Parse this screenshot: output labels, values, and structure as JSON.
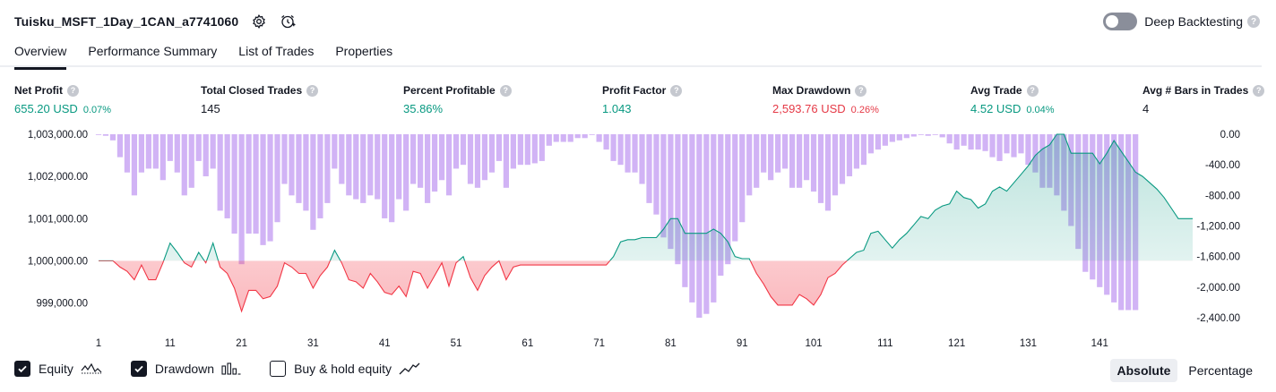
{
  "header": {
    "title": "Tuisku_MSFT_1Day_1CAN_a7741060",
    "deep_backtesting": "Deep Backtesting",
    "help": "?"
  },
  "tabs": [
    {
      "label": "Overview",
      "active": true
    },
    {
      "label": "Performance Summary",
      "active": false
    },
    {
      "label": "List of Trades",
      "active": false
    },
    {
      "label": "Properties",
      "active": false
    }
  ],
  "metrics": [
    {
      "label": "Net Profit",
      "value": "655.20 USD",
      "pct": "0.07%",
      "tone": "pos"
    },
    {
      "label": "Total Closed Trades",
      "value": "145",
      "pct": "",
      "tone": "neu"
    },
    {
      "label": "Percent Profitable",
      "value": "35.86%",
      "pct": "",
      "tone": "pos"
    },
    {
      "label": "Profit Factor",
      "value": "1.043",
      "pct": "",
      "tone": "pos"
    },
    {
      "label": "Max Drawdown",
      "value": "2,593.76 USD",
      "pct": "0.26%",
      "tone": "neg"
    },
    {
      "label": "Avg Trade",
      "value": "4.52 USD",
      "pct": "0.04%",
      "tone": "pos"
    },
    {
      "label": "Avg # Bars in Trades",
      "value": "4",
      "pct": "",
      "tone": "neu"
    }
  ],
  "legend": {
    "equity": "Equity",
    "drawdown": "Drawdown",
    "buy_hold": "Buy & hold equity"
  },
  "modes": {
    "absolute": "Absolute",
    "percentage": "Percentage"
  },
  "colors": {
    "up": "#089981",
    "down": "#f23645",
    "drawdown_bar": "#d1b3f5"
  },
  "chart_data": {
    "type": "line",
    "baseline": 1000000,
    "y_left_ticks": [
      "1,003,000.00",
      "1,002,000.00",
      "1,001,000.00",
      "1,000,000.00",
      "999,000.00"
    ],
    "y_left_values": [
      1003000,
      1002000,
      1001000,
      1000000,
      999000
    ],
    "y_right_ticks": [
      "0.00",
      "-400.00",
      "-800.00",
      "-1,200.00",
      "-1,600.00",
      "-2,000.00",
      "-2,400.00"
    ],
    "y_right_values": [
      0,
      -400,
      -800,
      -1200,
      -1600,
      -2000,
      -2400
    ],
    "x_ticks": [
      1,
      11,
      21,
      31,
      41,
      51,
      61,
      71,
      81,
      91,
      101,
      111,
      121,
      131,
      141
    ],
    "ylim": [
      998650,
      1003000
    ],
    "drawdown_lim": [
      -2400,
      0
    ],
    "xlim": [
      1,
      146
    ],
    "equity": [
      1000000,
      1000000,
      1000000,
      999850,
      999750,
      999550,
      999900,
      999550,
      999550,
      999950,
      1000420,
      1000200,
      999950,
      999850,
      1000200,
      999950,
      1000420,
      999850,
      999700,
      999350,
      998800,
      999300,
      999300,
      999100,
      999150,
      999400,
      999950,
      999850,
      999700,
      999700,
      999350,
      999650,
      999850,
      1000250,
      999950,
      999550,
      999500,
      999350,
      999700,
      999500,
      999250,
      999200,
      999400,
      999150,
      999750,
      999700,
      999350,
      999650,
      999950,
      999400,
      999950,
      1000100,
      999600,
      999300,
      999650,
      999850,
      1000000,
      999550,
      999850,
      999900,
      999900,
      999900,
      999900,
      999900,
      999900,
      999900,
      999900,
      999900,
      999900,
      999900,
      999900,
      999900,
      1000100,
      1000450,
      1000500,
      1000500,
      1000550,
      1000550,
      1000550,
      1000750,
      1001000,
      1001000,
      1000650,
      1000650,
      1000650,
      1000650,
      1000750,
      1000650,
      1000450,
      1000100,
      1000050,
      1000050,
      999700,
      999450,
      999150,
      998950,
      998950,
      998950,
      999200,
      999100,
      998950,
      999200,
      999600,
      999700,
      999900,
      1000050,
      1000200,
      1000250,
      1000650,
      1000700,
      1000500,
      1000300,
      1000500,
      1000650,
      1000850,
      1001050,
      1001000,
      1001200,
      1001300,
      1001350,
      1001650,
      1001500,
      1001450,
      1001250,
      1001350,
      1001650,
      1001750,
      1001650,
      1001850,
      1002050,
      1002250,
      1002500,
      1002650,
      1002750,
      1003000,
      1003000,
      1002550,
      1002550,
      1002550,
      1002550,
      1002300,
      1002550,
      1002850,
      1002600,
      1002350,
      1002100,
      1002000,
      1001850,
      1001700,
      1001500,
      1001250,
      1001000,
      1001000,
      1001000
    ],
    "drawdown": [
      0,
      -20,
      -80,
      -300,
      -500,
      -800,
      -500,
      -450,
      -450,
      -600,
      -350,
      -500,
      -800,
      -700,
      -350,
      -550,
      -450,
      -1000,
      -1100,
      -1300,
      -1700,
      -1300,
      -1300,
      -1450,
      -1400,
      -1150,
      -650,
      -800,
      -900,
      -1000,
      -1250,
      -1100,
      -900,
      -450,
      -650,
      -800,
      -850,
      -900,
      -800,
      -850,
      -1100,
      -1150,
      -850,
      -1000,
      -650,
      -700,
      -900,
      -750,
      -600,
      -800,
      -450,
      -400,
      -650,
      -700,
      -600,
      -500,
      -350,
      -700,
      -450,
      -400,
      -400,
      -380,
      -350,
      -150,
      -100,
      -100,
      -100,
      -50,
      -50,
      0,
      -100,
      -200,
      -350,
      -400,
      -500,
      -500,
      -650,
      -900,
      -1050,
      -1350,
      -1500,
      -1700,
      -2000,
      -2200,
      -2400,
      -2350,
      -2200,
      -1850,
      -1700,
      -1400,
      -1150,
      -800,
      -700,
      -500,
      -600,
      -500,
      -450,
      -700,
      -700,
      -600,
      -750,
      -900,
      -1000,
      -800,
      -650,
      -550,
      -450,
      -400,
      -250,
      -200,
      -150,
      -100,
      -80,
      -50,
      -30,
      0,
      -20,
      0,
      -40,
      -120,
      -200,
      -150,
      -200,
      -200,
      -220,
      -300,
      -350,
      -250,
      -300,
      -250,
      -400,
      -500,
      -700,
      -700,
      -800,
      -1000,
      -1200,
      -1500,
      -1800,
      -1900,
      -2000,
      -2100,
      -2200,
      -2300,
      -2300,
      -2300
    ]
  }
}
